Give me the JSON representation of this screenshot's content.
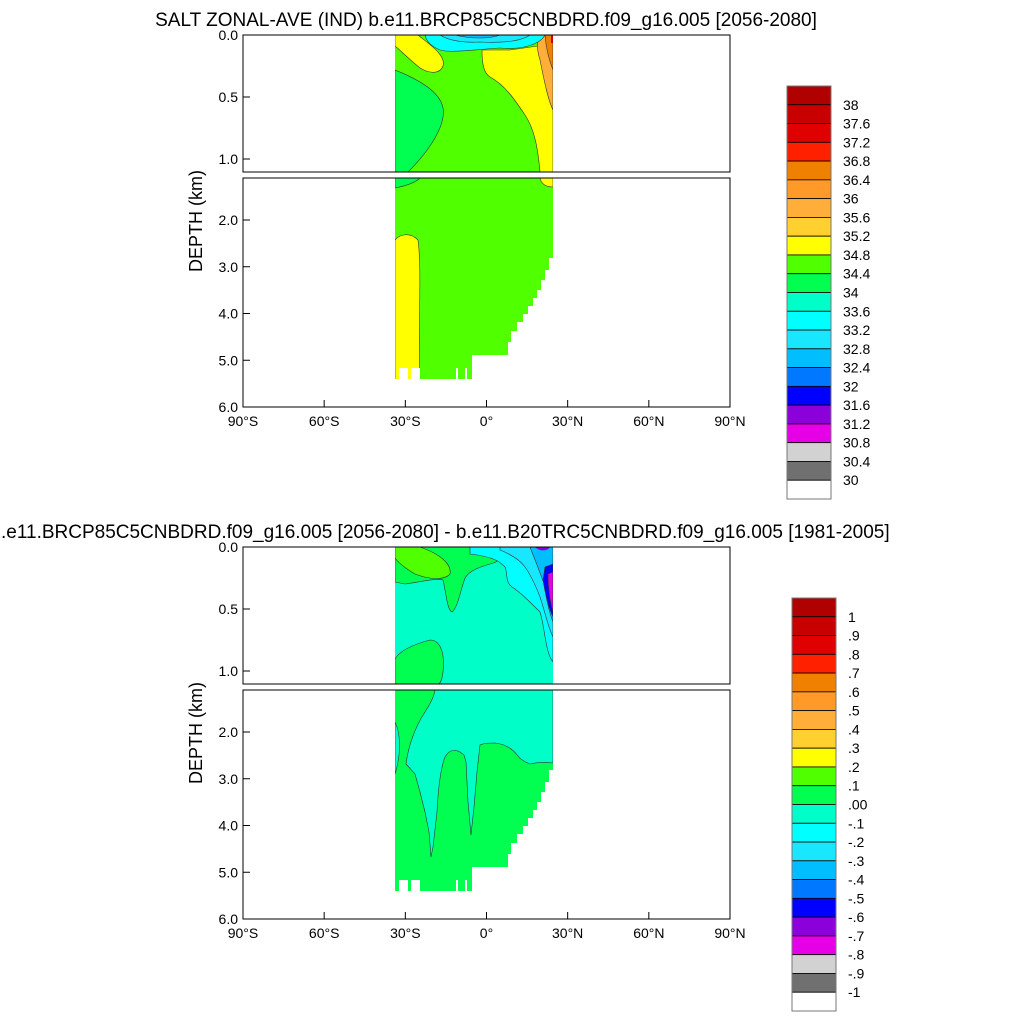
{
  "chart_data": [
    {
      "type": "contour",
      "title": "SALT ZONAL-AVE (IND) b.e11.BRCP85C5CNBDRD.f09_g16.005 [2056-2080]",
      "ylabel": "DEPTH (km)",
      "xlim": [
        -90,
        90
      ],
      "ylim": [
        0,
        6
      ],
      "y_reversed": true,
      "x_ticks": [
        "90°S",
        "60°S",
        "30°S",
        "0°",
        "30°N",
        "60°N",
        "90°N"
      ],
      "y_ticks_upper": [
        "0.0",
        "0.5",
        "1.0"
      ],
      "y_ticks_lower": [
        "2.0",
        "3.0",
        "4.0",
        "5.0",
        "6.0"
      ],
      "colorbar_labels": [
        "38",
        "37.6",
        "37.2",
        "36.8",
        "36.4",
        "36",
        "35.6",
        "35.2",
        "34.8",
        "34.4",
        "34",
        "33.6",
        "33.2",
        "32.8",
        "32.4",
        "32",
        "31.6",
        "31.2",
        "30.8",
        "30.4",
        "30"
      ],
      "colorbar_colors": [
        "#B00000",
        "#C80000",
        "#E00000",
        "#FF2000",
        "#F08000",
        "#FF9A28",
        "#FFAE3A",
        "#FFD030",
        "#FFFF00",
        "#50FF00",
        "#00FF50",
        "#00FFC8",
        "#00FFFF",
        "#19E6FF",
        "#00BEFF",
        "#0078FF",
        "#0000FF",
        "#8C00DC",
        "#E600E6",
        "#D2D2D2",
        "#707070",
        "#FFFFFF"
      ]
    },
    {
      "type": "contour",
      "title": ".e11.BRCP85C5CNBDRD.f09_g16.005 [2056-2080] - b.e11.B20TRC5CNBDRD.f09_g16.005 [1981-2005]",
      "ylabel": "DEPTH (km)",
      "xlim": [
        -90,
        90
      ],
      "ylim": [
        0,
        6
      ],
      "y_reversed": true,
      "x_ticks": [
        "90°S",
        "60°S",
        "30°S",
        "0°",
        "30°N",
        "60°N",
        "90°N"
      ],
      "y_ticks_upper": [
        "0.0",
        "0.5",
        "1.0"
      ],
      "y_ticks_lower": [
        "2.0",
        "3.0",
        "4.0",
        "5.0",
        "6.0"
      ],
      "colorbar_labels": [
        "1",
        ".9",
        ".8",
        ".7",
        ".6",
        ".5",
        ".4",
        ".3",
        ".2",
        ".1",
        ".00",
        "-.1",
        "-.2",
        "-.3",
        "-.4",
        "-.5",
        "-.6",
        "-.7",
        "-.8",
        "-.9",
        "-1"
      ],
      "colorbar_colors": [
        "#B00000",
        "#C80000",
        "#E00000",
        "#FF2000",
        "#F08000",
        "#FF9A28",
        "#FFAE3A",
        "#FFD030",
        "#FFFF00",
        "#50FF00",
        "#00FF50",
        "#00FFC8",
        "#00FFFF",
        "#19E6FF",
        "#00BEFF",
        "#0078FF",
        "#0000FF",
        "#8C00DC",
        "#E600E6",
        "#D2D2D2",
        "#707070",
        "#FFFFFF"
      ]
    }
  ]
}
